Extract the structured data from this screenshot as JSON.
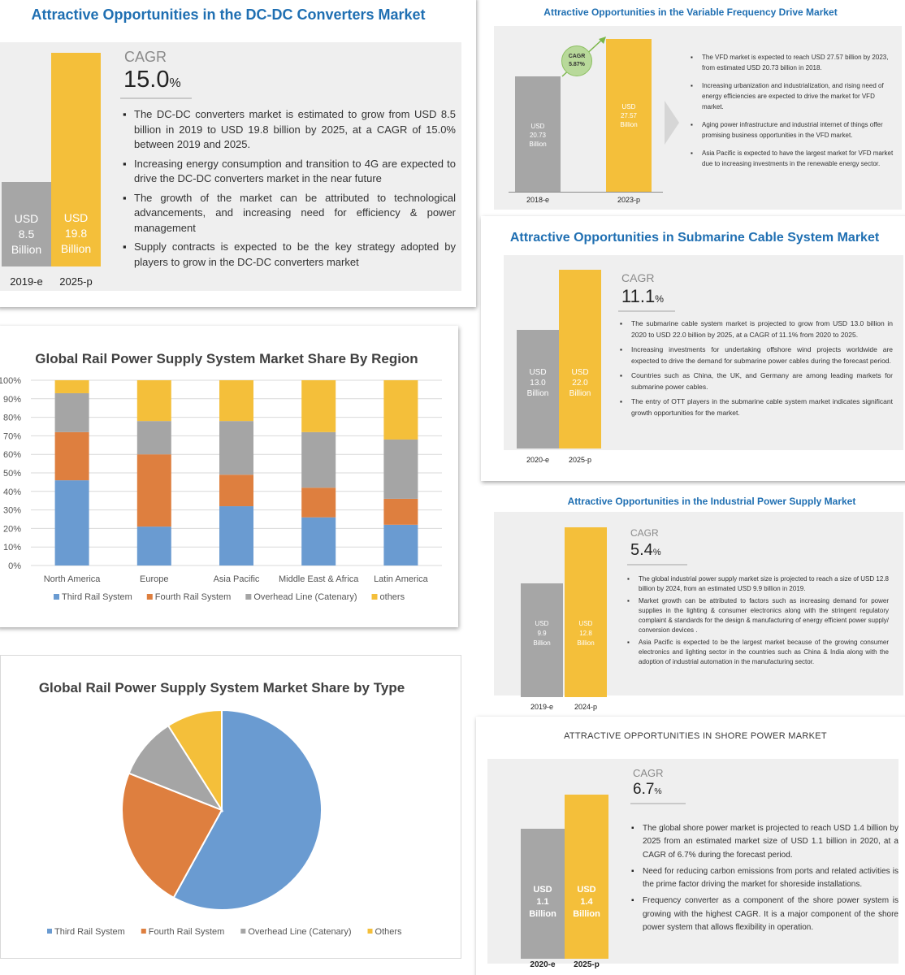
{
  "colors": {
    "gray_bar": "#a6a6a6",
    "yellow_bar": "#f4bf3a",
    "title_blue": "#1f6fb2",
    "third_rail": "#6a9bd1",
    "fourth_rail": "#de7f3f",
    "overhead": "#a5a5a5",
    "others": "#f4bf3a"
  },
  "dcdc": {
    "title": "Attractive Opportunities in the DC-DC Converters Market",
    "cagr_label": "CAGR",
    "cagr_value": "15.0",
    "cagr_unit": "%",
    "bar1": {
      "l1": "USD",
      "l2": "8.5",
      "l3": "Billion",
      "year": "2019-e"
    },
    "bar2": {
      "l1": "USD",
      "l2": "19.8",
      "l3": "Billion",
      "year": "2025-p"
    },
    "bullets": [
      "The DC-DC converters market is estimated to grow from USD 8.5 billion in 2019 to USD 19.8 billion by 2025, at a CAGR of 15.0% between 2019 and 2025.",
      "Increasing energy consumption and transition to 4G are expected to drive the DC-DC converters market in the near future",
      "The growth of the market can be attributed to technological advancements, and increasing need for efficiency & power management",
      "Supply contracts is expected to be the key strategy adopted by players to grow in the DC-DC converters market"
    ]
  },
  "vfd": {
    "title": "Attractive Opportunities in the Variable Frequency Drive Market",
    "cagr_label": "CAGR",
    "cagr_value": "5.87%",
    "bar1": {
      "l1": "USD",
      "l2": "20.73",
      "l3": "Billion",
      "year": "2018-e"
    },
    "bar2": {
      "l1": "USD",
      "l2": "27.57",
      "l3": "Billion",
      "year": "2023-p"
    },
    "bullets": [
      "The VFD market is expected to reach USD 27.57 billion by 2023, from estimated USD 20.73 billion in 2018.",
      "Increasing urbanization and industrialization, and rising need of energy efficiencies are expected to drive the market for VFD market.",
      "Aging power infrastructure and industrial internet of things offer promising business opportunities in the VFD market.",
      "Asia Pacific is expected to have the largest market for VFD market due to increasing investments in the renewable energy sector."
    ]
  },
  "submarine": {
    "title": "Attractive Opportunities in Submarine Cable System Market",
    "cagr_label": "CAGR",
    "cagr_value": "11.1",
    "cagr_unit": "%",
    "bar1": {
      "l1": "USD",
      "l2": "13.0",
      "l3": "Billion",
      "year": "2020-e"
    },
    "bar2": {
      "l1": "USD",
      "l2": "22.0",
      "l3": "Billion",
      "year": "2025-p"
    },
    "bullets": [
      "The submarine cable system market is projected to grow from USD 13.0 billion in 2020 to USD 22.0 billion by 2025, at a CAGR of 11.1% from 2020 to 2025.",
      "Increasing investments for undertaking offshore wind projects worldwide are expected to drive the demand for submarine power cables during the forecast period.",
      "Countries such as China, the UK, and Germany are among leading markets for submarine power cables.",
      "The entry of OTT players in the submarine cable system market indicates significant growth opportunities for the market."
    ]
  },
  "industrial": {
    "title": "Attractive Opportunities in the Industrial Power Supply Market",
    "cagr_label": "CAGR",
    "cagr_value": "5.4",
    "cagr_unit": "%",
    "bar1": {
      "l1": "USD",
      "l2": "9.9",
      "l3": "Billion",
      "year": "2019-e"
    },
    "bar2": {
      "l1": "USD",
      "l2": "12.8",
      "l3": "Billion",
      "year": "2024-p"
    },
    "bullets": [
      "The global industrial power supply market size is projected to reach a size of USD 12.8 billion by 2024, from an estimated USD 9.9 billion in 2019.",
      "Market growth can be attributed to factors such as increasing demand for power supplies in the lighting & consumer electronics along with the stringent regulatory complaint & standards for the design & manufacturing of energy efficient power supply/ conversion devices .",
      "Asia Pacific is expected to be the largest market because of the growing consumer electronics and lighting sector in the countries such as China & India along with the adoption of industrial automation in the manufacturing sector."
    ]
  },
  "shore": {
    "title": "ATTRACTIVE OPPORTUNITIES IN SHORE POWER MARKET",
    "cagr_label": "CAGR",
    "cagr_value": "6.7",
    "cagr_unit": "%",
    "bar1": {
      "l1": "USD",
      "l2": "1.1",
      "l3": "Billion",
      "year": "2020-e"
    },
    "bar2": {
      "l1": "USD",
      "l2": "1.4",
      "l3": "Billion",
      "year": "2025-p"
    },
    "bullets": [
      "The global shore power market is projected to reach USD 1.4 billion by 2025 from an estimated market size of USD 1.1 billion in 2020, at a CAGR of 6.7% during the forecast period.",
      "Need for reducing carbon emissions from ports and related activities is the prime factor driving the market for shoreside installations.",
      "Frequency converter as a component of the shore power system is growing with the highest CAGR. It is a major component of the shore power system that allows flexibility in operation."
    ]
  },
  "chart_data": [
    {
      "type": "bar",
      "title": "Attractive Opportunities in the DC-DC Converters Market",
      "categories": [
        "2019-e",
        "2025-p"
      ],
      "values": [
        8.5,
        19.8
      ],
      "ylabel": "USD Billion",
      "annotation": "CAGR 15.0%"
    },
    {
      "type": "bar",
      "title": "Attractive Opportunities in the Variable Frequency Drive Market",
      "categories": [
        "2018-e",
        "2023-p"
      ],
      "values": [
        20.73,
        27.57
      ],
      "ylabel": "USD Billion",
      "annotation": "CAGR 5.87%"
    },
    {
      "type": "bar",
      "title": "Attractive Opportunities in Submarine Cable System Market",
      "categories": [
        "2020-e",
        "2025-p"
      ],
      "values": [
        13.0,
        22.0
      ],
      "ylabel": "USD Billion",
      "annotation": "CAGR 11.1%"
    },
    {
      "type": "bar",
      "title": "Attractive Opportunities in the Industrial Power Supply Market",
      "categories": [
        "2019-e",
        "2024-p"
      ],
      "values": [
        9.9,
        12.8
      ],
      "ylabel": "USD Billion",
      "annotation": "CAGR 5.4%"
    },
    {
      "type": "bar",
      "title": "ATTRACTIVE OPPORTUNITIES IN SHORE POWER MARKET",
      "categories": [
        "2020-e",
        "2025-p"
      ],
      "values": [
        1.1,
        1.4
      ],
      "ylabel": "USD Billion",
      "annotation": "CAGR 6.7%"
    },
    {
      "type": "bar",
      "stacked": true,
      "title": "Global Rail Power Supply System Market Share By Region",
      "categories": [
        "North America",
        "Europe",
        "Asia Pacific",
        "Middle East & Africa",
        "Latin America"
      ],
      "series": [
        {
          "name": "Third Rail System",
          "values": [
            46,
            21,
            32,
            26,
            22
          ]
        },
        {
          "name": "Fourth Rail System",
          "values": [
            26,
            39,
            17,
            16,
            14
          ]
        },
        {
          "name": "Overhead Line (Catenary)",
          "values": [
            21,
            18,
            29,
            30,
            32
          ]
        },
        {
          "name": "others",
          "values": [
            7,
            22,
            22,
            28,
            32
          ]
        }
      ],
      "ylim": [
        0,
        100
      ],
      "yticks": [
        "0%",
        "10%",
        "20%",
        "30%",
        "40%",
        "50%",
        "60%",
        "70%",
        "80%",
        "90%",
        "100%"
      ],
      "legend": "bottom"
    },
    {
      "type": "pie",
      "title": "Global Rail Power Supply System Market Share by Type",
      "labels": [
        "Third Rail System",
        "Fourth Rail System",
        "Overhead Line (Catenary)",
        "Others"
      ],
      "values": [
        58,
        23,
        10,
        9
      ],
      "legend": "bottom"
    }
  ]
}
